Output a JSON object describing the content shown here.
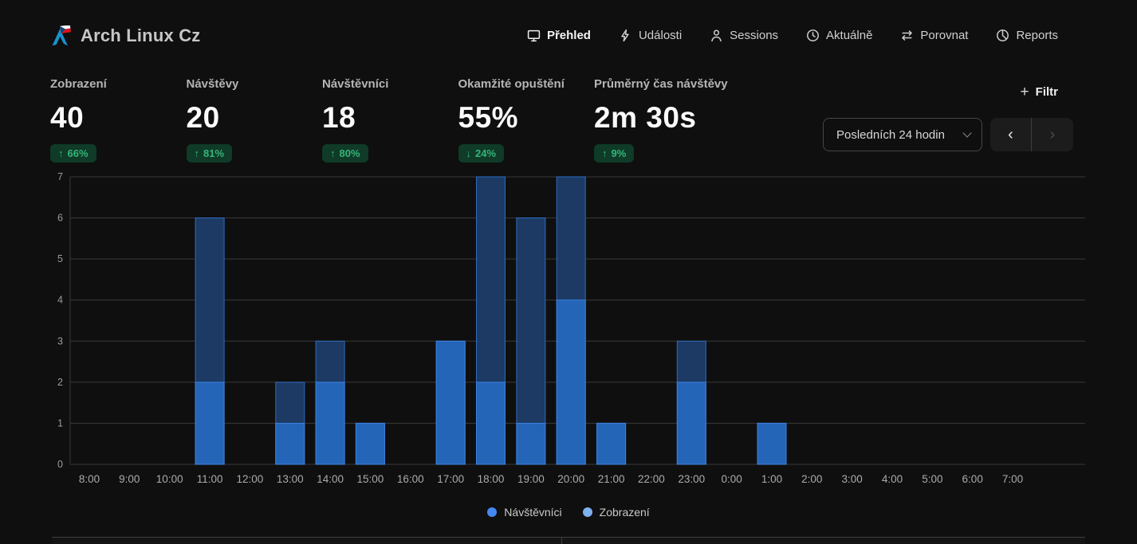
{
  "app": {
    "title": "Arch Linux Cz"
  },
  "nav": {
    "items": [
      {
        "label": "Přehled",
        "icon": "monitor-icon",
        "active": true
      },
      {
        "label": "Události",
        "icon": "zap-icon",
        "active": false
      },
      {
        "label": "Sessions",
        "icon": "user-icon",
        "active": false
      },
      {
        "label": "Aktuálně",
        "icon": "clock-icon",
        "active": false
      },
      {
        "label": "Porovnat",
        "icon": "compare-arrows-icon",
        "active": false
      },
      {
        "label": "Reports",
        "icon": "pie-chart-icon",
        "active": false
      }
    ]
  },
  "stats": [
    {
      "label": "Zobrazení",
      "value": "40",
      "arrow": "↑",
      "change": "66%"
    },
    {
      "label": "Návštěvy",
      "value": "20",
      "arrow": "↑",
      "change": "81%"
    },
    {
      "label": "Návštěvníci",
      "value": "18",
      "arrow": "↑",
      "change": "80%"
    },
    {
      "label": "Okamžité opuštění",
      "value": "55%",
      "arrow": "↓",
      "change": "24%"
    },
    {
      "label": "Průměrný čas návštěvy",
      "value": "2m 30s",
      "arrow": "↑",
      "change": "9%"
    }
  ],
  "filter": {
    "label": "Filtr",
    "plus": "+"
  },
  "date_range": {
    "selected": "Posledních 24 hodin"
  },
  "pager": {
    "prev": "‹",
    "next": "›"
  },
  "chart_data": {
    "type": "bar",
    "title": "",
    "xlabel": "",
    "ylabel": "",
    "x": [
      "8:00",
      "9:00",
      "10:00",
      "11:00",
      "12:00",
      "13:00",
      "14:00",
      "15:00",
      "16:00",
      "17:00",
      "18:00",
      "19:00",
      "20:00",
      "21:00",
      "22:00",
      "23:00",
      "0:00",
      "1:00",
      "2:00",
      "3:00",
      "4:00",
      "5:00",
      "6:00",
      "7:00"
    ],
    "series": [
      {
        "name": "Zobrazení",
        "values": [
          0,
          0,
          0,
          6,
          0,
          2,
          3,
          1,
          0,
          3,
          7,
          6,
          7,
          1,
          0,
          3,
          0,
          1,
          0,
          0,
          0,
          0,
          0,
          0
        ],
        "fill": "#1c3a64",
        "border": "#2d6cc0"
      },
      {
        "name": "Návštěvníci",
        "values": [
          0,
          0,
          0,
          2,
          0,
          1,
          2,
          1,
          0,
          3,
          2,
          1,
          4,
          1,
          0,
          2,
          0,
          1,
          0,
          0,
          0,
          0,
          0,
          0
        ],
        "fill": "#2465b8",
        "border": "#3d82e0"
      }
    ],
    "ylim": [
      0,
      7
    ],
    "yticks": [
      0,
      1,
      2,
      3,
      4,
      5,
      6,
      7
    ],
    "grid": true,
    "legend_position": "bottom-center",
    "legend_items": [
      {
        "label": "Návštěvníci",
        "color": "#4489f0"
      },
      {
        "label": "Zobrazení",
        "color": "#7fb0f0"
      }
    ]
  },
  "colors": {
    "background": "#0f0f0f",
    "gridline": "#3a3a3a",
    "axis_label": "#9b9b9b",
    "x_label": "#ababab",
    "badge_bg": "#0f3b28",
    "badge_text": "#35b579",
    "accent_blue": "#2465b8",
    "logo_blue": "#1793d1",
    "flag_red": "#d7141a",
    "flag_blue": "#11457e"
  }
}
